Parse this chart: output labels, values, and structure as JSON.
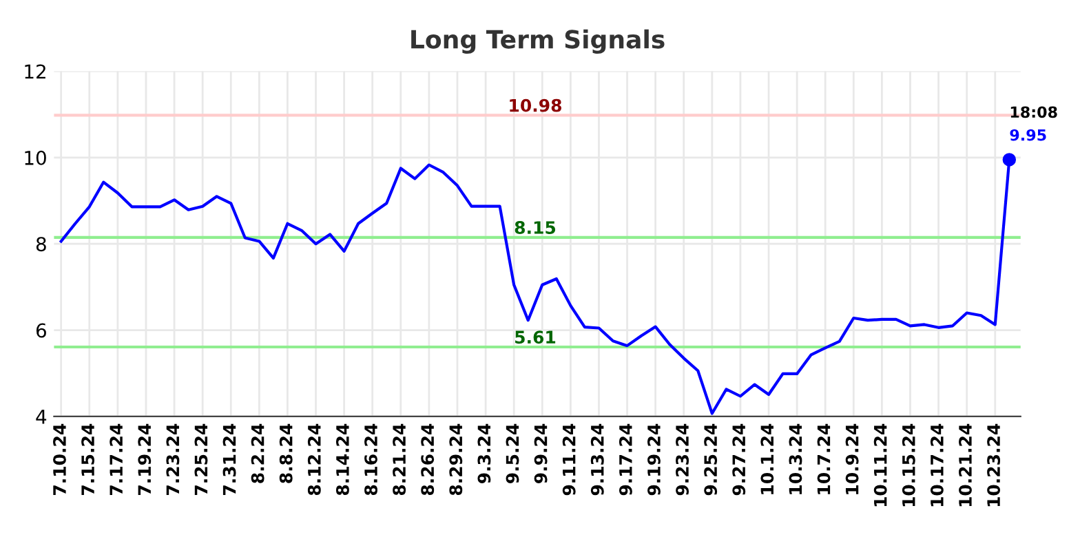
{
  "chart_data": {
    "type": "line",
    "title": "Long Term Signals",
    "categories": [
      "7.10.24",
      null,
      "7.15.24",
      null,
      "7.17.24",
      null,
      "7.19.24",
      null,
      "7.23.24",
      null,
      "7.25.24",
      null,
      "7.31.24",
      null,
      "8.2.24",
      null,
      "8.8.24",
      null,
      "8.12.24",
      null,
      "8.14.24",
      null,
      "8.16.24",
      null,
      "8.21.24",
      null,
      "8.26.24",
      null,
      "8.29.24",
      null,
      "9.3.24",
      null,
      "9.5.24",
      null,
      "9.9.24",
      null,
      "9.11.24",
      null,
      "9.13.24",
      null,
      "9.17.24",
      null,
      "9.19.24",
      null,
      "9.23.24",
      null,
      "9.25.24",
      null,
      "9.27.24",
      null,
      "10.1.24",
      null,
      "10.3.24",
      null,
      "10.7.24",
      null,
      "10.9.24",
      null,
      "10.11.24",
      null,
      "10.15.24",
      null,
      "10.17.24",
      null,
      "10.21.24",
      null,
      "10.23.24",
      null
    ],
    "series": [
      {
        "color": "#0000ff",
        "values": [
          8.06,
          8.47,
          8.86,
          9.43,
          9.18,
          8.86,
          8.86,
          8.86,
          9.02,
          8.79,
          8.87,
          9.1,
          8.94,
          8.14,
          8.06,
          7.67,
          8.47,
          8.31,
          8.0,
          8.22,
          7.83,
          8.47,
          8.71,
          8.94,
          9.75,
          9.51,
          9.83,
          9.66,
          9.35,
          8.87,
          8.87,
          8.87,
          7.05,
          6.23,
          7.05,
          7.19,
          6.57,
          6.07,
          6.05,
          5.75,
          5.64,
          5.87,
          6.08,
          5.67,
          5.35,
          5.06,
          4.07,
          4.63,
          4.47,
          4.74,
          4.51,
          4.99,
          4.99,
          5.43,
          5.59,
          5.74,
          6.28,
          6.23,
          6.25,
          6.25,
          6.1,
          6.13,
          6.06,
          6.1,
          6.4,
          6.34,
          6.13,
          9.95
        ],
        "value_labels": [
          null,
          null,
          null,
          null,
          null,
          null,
          null,
          null,
          null,
          null,
          null,
          null,
          null,
          null,
          null,
          null,
          null,
          null,
          null,
          null,
          null,
          null,
          null,
          null,
          null,
          null,
          null,
          null,
          null,
          null,
          null,
          null,
          null,
          null,
          null,
          null,
          null,
          null,
          null,
          null,
          null,
          null,
          null,
          null,
          null,
          null,
          null,
          null,
          null,
          null,
          null,
          null,
          null,
          null,
          null,
          null,
          null,
          null,
          null,
          null,
          null,
          null,
          null,
          null,
          null,
          null,
          null,
          "9.95"
        ]
      }
    ],
    "ylim": [
      4,
      12
    ],
    "yticks": [
      4,
      6,
      8,
      10,
      12
    ],
    "grid": true,
    "ref_lines": [
      {
        "axis": "y",
        "value": 10.98,
        "label": "10.98",
        "color": "#ffcccc"
      },
      {
        "axis": "y",
        "value": 8.15,
        "label": "8.15",
        "color": "#90ee90"
      },
      {
        "axis": "y",
        "value": 5.61,
        "label": "5.61",
        "color": "#90ee90"
      }
    ],
    "annotations": [
      "18:08"
    ]
  }
}
